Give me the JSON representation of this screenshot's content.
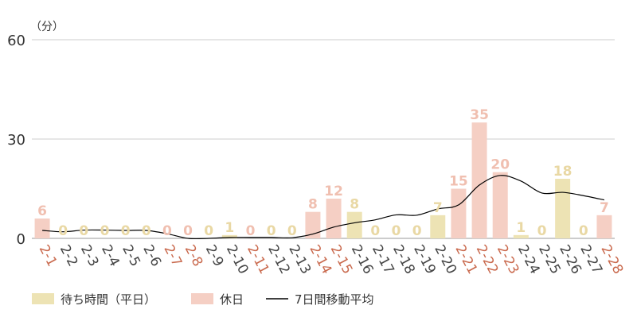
{
  "chart_data": {
    "type": "bar",
    "unit_label": "（分）",
    "ylim": [
      0,
      60
    ],
    "y_ticks": [
      0,
      30,
      60
    ],
    "grid": true,
    "legend_position": "bottom-left",
    "categories": [
      "2-1",
      "2-2",
      "2-3",
      "2-4",
      "2-5",
      "2-6",
      "2-7",
      "2-8",
      "2-9",
      "2-10",
      "2-11",
      "2-12",
      "2-13",
      "2-14",
      "2-15",
      "2-16",
      "2-17",
      "2-18",
      "2-19",
      "2-20",
      "2-21",
      "2-22",
      "2-23",
      "2-24",
      "2-25",
      "2-26",
      "2-27",
      "2-28"
    ],
    "holiday": [
      true,
      false,
      false,
      false,
      false,
      false,
      true,
      true,
      false,
      false,
      true,
      false,
      false,
      true,
      true,
      false,
      false,
      false,
      false,
      false,
      true,
      true,
      true,
      false,
      false,
      false,
      false,
      true
    ],
    "series": [
      {
        "name": "待ち時間（平日）",
        "kind": "bar",
        "color": "#ede3b4",
        "values": [
          null,
          0,
          0,
          0,
          0,
          0,
          null,
          null,
          0,
          1,
          null,
          0,
          0,
          null,
          null,
          8,
          0,
          0,
          0,
          7,
          null,
          null,
          null,
          1,
          0,
          18,
          0,
          null
        ]
      },
      {
        "name": "休日",
        "kind": "bar",
        "color": "#f5cfc4",
        "values": [
          6,
          null,
          null,
          null,
          null,
          null,
          0,
          0,
          null,
          null,
          0,
          null,
          null,
          8,
          12,
          null,
          null,
          null,
          null,
          null,
          15,
          35,
          20,
          null,
          null,
          null,
          null,
          7
        ]
      },
      {
        "name": "7日間移動平均",
        "kind": "line",
        "color": "#000000",
        "values": [
          2.4,
          2.0,
          2.5,
          2.5,
          2.4,
          2.4,
          1.4,
          0,
          0,
          0.3,
          0.3,
          0.3,
          0.2,
          1.3,
          3.4,
          4.7,
          5.6,
          7.1,
          7.0,
          8.9,
          10.1,
          16.1,
          19.0,
          17.3,
          13.7,
          13.9,
          12.9,
          11.6
        ]
      }
    ],
    "weekday_label_color": "#444444",
    "holiday_label_color": "#c9694d",
    "value_label_color": "#e9d8a4",
    "holiday_value_label_color": "#f0bfb0",
    "axis_text_color": "#333333"
  }
}
